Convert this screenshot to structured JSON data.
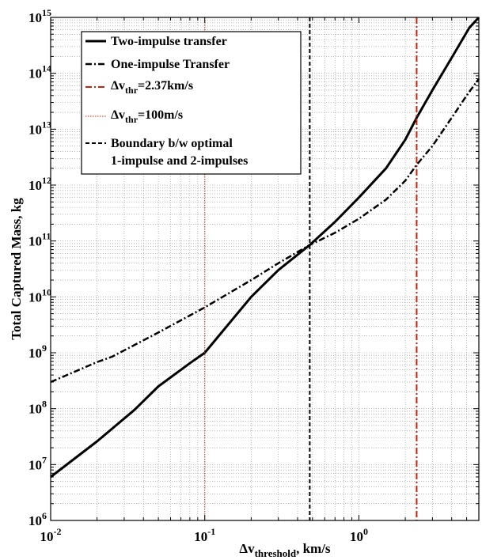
{
  "chart_data": {
    "type": "line",
    "xscale": "log",
    "yscale": "log",
    "xlim": [
      0.01,
      6
    ],
    "ylim": [
      1000000,
      1000000000000000
    ],
    "grid": true,
    "legend_position": "top-left",
    "xlabel": {
      "main": "Δv",
      "sub": "threshold",
      "suffix": ", km/s"
    },
    "ylabel": "Total Captured Mass, kg",
    "x_ticks": [
      {
        "value": 0.01,
        "base": "10",
        "exp": "-2"
      },
      {
        "value": 0.1,
        "base": "10",
        "exp": "-1"
      },
      {
        "value": 1,
        "base": "10",
        "exp": "0"
      }
    ],
    "y_ticks": [
      {
        "value": 1000000.0,
        "base": "10",
        "exp": "6"
      },
      {
        "value": 10000000.0,
        "base": "10",
        "exp": "7"
      },
      {
        "value": 100000000.0,
        "base": "10",
        "exp": "8"
      },
      {
        "value": 1000000000.0,
        "base": "10",
        "exp": "9"
      },
      {
        "value": 10000000000.0,
        "base": "10",
        "exp": "10"
      },
      {
        "value": 100000000000.0,
        "base": "10",
        "exp": "11"
      },
      {
        "value": 1000000000000.0,
        "base": "10",
        "exp": "12"
      },
      {
        "value": 10000000000000.0,
        "base": "10",
        "exp": "13"
      },
      {
        "value": 100000000000000.0,
        "base": "10",
        "exp": "14"
      },
      {
        "value": 1000000000000000.0,
        "base": "10",
        "exp": "15"
      }
    ],
    "series": [
      {
        "name": "Two-impulse transfer",
        "style": "solid",
        "color": "#000000",
        "points": [
          [
            0.01,
            6000000.0
          ],
          [
            0.02,
            26000000.0
          ],
          [
            0.035,
            95000000.0
          ],
          [
            0.05,
            250000000.0
          ],
          [
            0.08,
            650000000.0
          ],
          [
            0.1,
            1000000000.0
          ],
          [
            0.2,
            10000000000.0
          ],
          [
            0.3,
            30000000000.0
          ],
          [
            0.48,
            85000000000.0
          ],
          [
            0.7,
            220000000000.0
          ],
          [
            1.0,
            600000000000.0
          ],
          [
            1.5,
            2000000000000.0
          ],
          [
            2.0,
            6500000000000.0
          ],
          [
            2.37,
            16000000000000.0
          ],
          [
            3.0,
            50000000000000.0
          ],
          [
            4.0,
            190000000000000.0
          ],
          [
            5.2,
            650000000000000.0
          ],
          [
            6.0,
            1000000000000000.0
          ]
        ]
      },
      {
        "name": "One-impulse Transfer",
        "style": "dashdot",
        "color": "#000000",
        "points": [
          [
            0.01,
            300000000.0
          ],
          [
            0.02,
            680000000.0
          ],
          [
            0.025,
            850000000.0
          ],
          [
            0.05,
            2300000000.0
          ],
          [
            0.1,
            6500000000.0
          ],
          [
            0.2,
            20000000000.0
          ],
          [
            0.3,
            40000000000.0
          ],
          [
            0.48,
            85000000000.0
          ],
          [
            0.7,
            140000000000.0
          ],
          [
            1.0,
            250000000000.0
          ],
          [
            1.5,
            550000000000.0
          ],
          [
            2.0,
            1200000000000.0
          ],
          [
            2.37,
            2300000000000.0
          ],
          [
            3.0,
            5000000000000.0
          ],
          [
            4.0,
            16000000000000.0
          ],
          [
            5.0,
            40000000000000.0
          ],
          [
            6.0,
            80000000000000.0
          ]
        ]
      },
      {
        "name": "Δv_thr=2.37km/s",
        "legend_main": "Δv",
        "legend_sub": "thr",
        "legend_rest": "=2.37km/s",
        "style": "vline-dashdot",
        "color": "#cc2200",
        "x": 2.37
      },
      {
        "name": "Δv_thr=100m/s",
        "legend_main": "Δv",
        "legend_sub": "thr",
        "legend_rest": "=100m/s",
        "style": "vline-dotted",
        "color": "#cc2200",
        "x": 0.1
      },
      {
        "name": "Boundary b/w optimal 1-impulse and 2-impulses",
        "legend_line1": "Boundary b/w optimal",
        "legend_line2": "1-impulse and 2-impulses",
        "style": "vline-dashed",
        "color": "#000000",
        "x": 0.48
      }
    ]
  }
}
